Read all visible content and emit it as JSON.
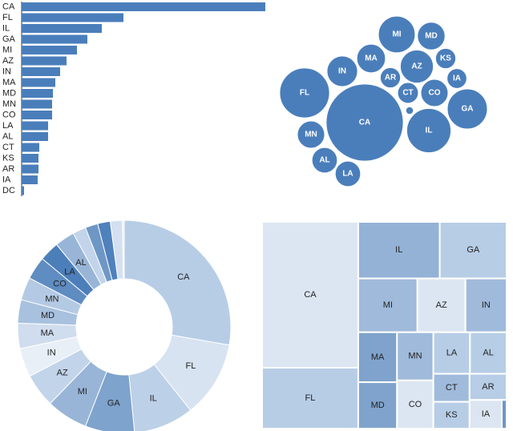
{
  "chart_data": [
    {
      "type": "bar",
      "color": "#4a7ebb",
      "categories": [
        "CA",
        "FL",
        "IL",
        "GA",
        "MI",
        "AZ",
        "IN",
        "MA",
        "MD",
        "MN",
        "CO",
        "LA",
        "AL",
        "CT",
        "KS",
        "AR",
        "IA",
        "DC"
      ],
      "values": [
        304,
        127,
        100,
        82,
        69,
        56,
        48,
        42,
        39,
        38,
        38,
        33,
        33,
        22,
        21,
        21,
        20,
        3
      ]
    },
    {
      "type": "bubble",
      "color": "#4a7ebb",
      "categories": [
        "CA",
        "FL",
        "IL",
        "GA",
        "MI",
        "AZ",
        "IN",
        "MA",
        "MD",
        "MN",
        "CO",
        "LA",
        "AL",
        "CT",
        "KS",
        "AR",
        "IA",
        null
      ],
      "values": [
        304,
        127,
        100,
        82,
        69,
        56,
        48,
        42,
        39,
        38,
        38,
        33,
        33,
        22,
        21,
        21,
        20,
        3
      ]
    },
    {
      "type": "donut",
      "categories": [
        "CA",
        "FL",
        "IL",
        "GA",
        "MI",
        "AZ",
        "IN",
        "MA",
        "MD",
        "MN",
        "CO",
        "LA",
        "AL",
        null,
        null,
        null,
        null,
        null
      ],
      "values": [
        304,
        127,
        100,
        82,
        69,
        56,
        48,
        42,
        39,
        38,
        38,
        33,
        33,
        22,
        21,
        21,
        20,
        3
      ],
      "colors": [
        "#b7cde6",
        "#d7e3f1",
        "#bcd0e7",
        "#7ea3cc",
        "#98b5d7",
        "#c2d4ea",
        "#e8eff7",
        "#d0ddee",
        "#a8c1df",
        "#b4cae4",
        "#5f8cc1",
        "#4c7fba",
        "#98b5d7",
        "#c2d4ea",
        "#6e97c6",
        "#4f81bc",
        "#d4e0f0",
        "#e5edf7"
      ]
    },
    {
      "type": "treemap",
      "categories": [
        "CA",
        "FL",
        "IL",
        "GA",
        "MI",
        "AZ",
        "IN",
        "MA",
        "MD",
        "MN",
        "CO",
        "LA",
        "AL",
        "CT",
        "KS",
        "AR",
        "IA",
        null
      ],
      "values": [
        304,
        127,
        100,
        82,
        69,
        56,
        48,
        42,
        39,
        38,
        38,
        33,
        33,
        22,
        21,
        21,
        20,
        3
      ],
      "colors": [
        "#dce6f2",
        "#b7cde6",
        "#93b2d6",
        "#b7cde6",
        "#9fbadb",
        "#dce6f2",
        "#9fbadb",
        "#7fa3cc",
        "#7fa3cc",
        "#9fbadb",
        "#dce6f2",
        "#b7cde6",
        "#b7cde6",
        "#9fbadb",
        "#b7cde6",
        "#b7cde6",
        "#dce6f2",
        "#6e97c6"
      ]
    }
  ]
}
